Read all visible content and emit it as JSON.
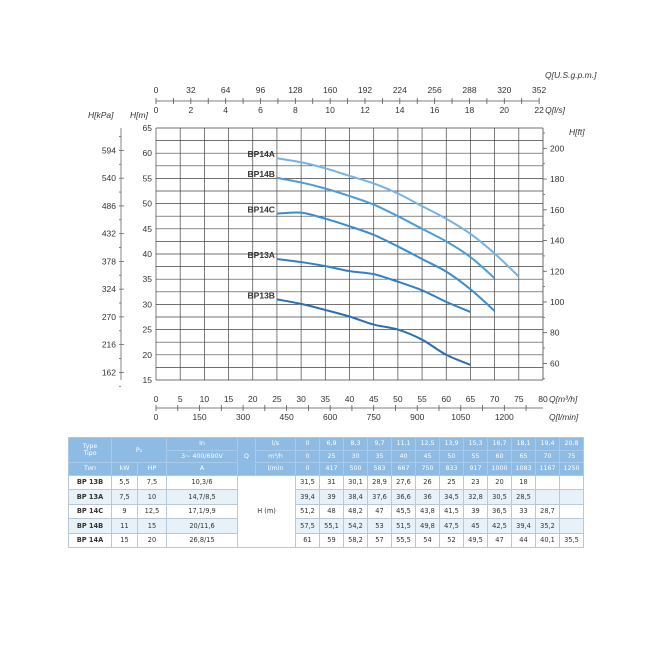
{
  "chart_data": {
    "type": "line",
    "xlabel": "Q[m³/h]",
    "ylabel": "H[m]",
    "xlim": [
      0,
      80
    ],
    "ylim": [
      15,
      65
    ],
    "x_ticks": [
      0,
      5,
      10,
      15,
      20,
      25,
      30,
      35,
      40,
      45,
      50,
      55,
      60,
      65,
      70,
      75,
      80
    ],
    "y_ticks": [
      15,
      20,
      25,
      30,
      35,
      40,
      45,
      50,
      55,
      60,
      65
    ],
    "grid": true,
    "secondary_axes": {
      "top_lps": {
        "label": "Q[l/s]",
        "ticks": [
          0,
          2,
          4,
          6,
          8,
          10,
          12,
          14,
          16,
          18,
          20,
          22
        ]
      },
      "top_usgpm": {
        "label": "Q[U.S.g.p.m.]",
        "ticks": [
          0,
          32,
          64,
          96,
          128,
          160,
          192,
          224,
          256,
          288,
          320,
          352
        ]
      },
      "bottom_lmin": {
        "label": "Q[l/min]",
        "ticks": [
          0,
          150,
          300,
          450,
          600,
          750,
          900,
          1050,
          1200
        ]
      },
      "left_kpa": {
        "label": "H[kPa]",
        "ticks": [
          162,
          216,
          270,
          324,
          378,
          432,
          486,
          540,
          594
        ]
      },
      "right_ft": {
        "label": "H[ft]",
        "ticks": [
          60,
          80,
          100,
          120,
          140,
          160,
          180,
          200
        ]
      }
    },
    "series": [
      {
        "name": "BP14A",
        "color": "#74b3e3",
        "x": [
          25,
          30,
          35,
          40,
          45,
          50,
          55,
          60,
          65,
          70,
          75
        ],
        "y": [
          59,
          58.2,
          57,
          55.5,
          54,
          52,
          49.5,
          47,
          44,
          40.1,
          35.5
        ]
      },
      {
        "name": "BP14B",
        "color": "#4d9cd8",
        "x": [
          25,
          30,
          35,
          40,
          45,
          50,
          55,
          60,
          65,
          70
        ],
        "y": [
          55.1,
          54.2,
          53,
          51.5,
          49.8,
          47.5,
          45,
          42.5,
          39.4,
          35.2
        ]
      },
      {
        "name": "BP14C",
        "color": "#3a8ccf",
        "x": [
          25,
          30,
          35,
          40,
          45,
          50,
          55,
          60,
          65,
          70
        ],
        "y": [
          48,
          48.2,
          47,
          45.5,
          43.8,
          41.5,
          39,
          36.5,
          33,
          28.7
        ]
      },
      {
        "name": "BP13A",
        "color": "#2f80c5",
        "x": [
          25,
          30,
          35,
          40,
          45,
          50,
          55,
          60,
          65
        ],
        "y": [
          39,
          38.4,
          37.6,
          36.6,
          36,
          34.5,
          32.8,
          30.5,
          28.5
        ]
      },
      {
        "name": "BP13B",
        "color": "#2a6fb4",
        "x": [
          25,
          30,
          35,
          40,
          45,
          50,
          55,
          60,
          65
        ],
        "y": [
          31,
          30.1,
          28.9,
          27.6,
          26,
          25,
          23,
          20,
          18
        ]
      }
    ]
  },
  "table": {
    "header": {
      "type": "Type",
      "tipo": "Tipo",
      "tip": "Тип",
      "p2": "P₂",
      "in": "In",
      "in_sub": "3~ 400/690V",
      "q": "Q",
      "kw": "kW",
      "hp": "HP",
      "a": "A"
    },
    "q_units": [
      {
        "unit": "l/s",
        "values": [
          "0",
          "6,9",
          "8,3",
          "9,7",
          "11,1",
          "12,5",
          "13,9",
          "15,3",
          "16,7",
          "18,1",
          "19,4",
          "20,8"
        ]
      },
      {
        "unit": "m³/h",
        "values": [
          "0",
          "25",
          "30",
          "35",
          "40",
          "45",
          "50",
          "55",
          "60",
          "65",
          "70",
          "75"
        ]
      },
      {
        "unit": "l/min",
        "values": [
          "0",
          "417",
          "500",
          "583",
          "667",
          "750",
          "833",
          "917",
          "1000",
          "1083",
          "1167",
          "1250"
        ]
      }
    ],
    "h_label": "H (m)",
    "rows": [
      {
        "type": "BP 13B",
        "kw": "5,5",
        "hp": "7,5",
        "a": "10,3/6",
        "h": [
          "31,5",
          "31",
          "30,1",
          "28,9",
          "27,6",
          "26",
          "25",
          "23",
          "20",
          "18",
          "",
          ""
        ]
      },
      {
        "type": "BP 13A",
        "kw": "7,5",
        "hp": "10",
        "a": "14,7/8,5",
        "h": [
          "39,4",
          "39",
          "38,4",
          "37,6",
          "36,6",
          "36",
          "34,5",
          "32,8",
          "30,5",
          "28,5",
          "",
          ""
        ]
      },
      {
        "type": "BP 14C",
        "kw": "9",
        "hp": "12,5",
        "a": "17,1/9,9",
        "h": [
          "51,2",
          "48",
          "48,2",
          "47",
          "45,5",
          "43,8",
          "41,5",
          "39",
          "36,5",
          "33",
          "28,7",
          ""
        ]
      },
      {
        "type": "BP 14B",
        "kw": "11",
        "hp": "15",
        "a": "20/11,6",
        "h": [
          "57,5",
          "55,1",
          "54,2",
          "53",
          "51,5",
          "49,8",
          "47,5",
          "45",
          "42,5",
          "39,4",
          "35,2",
          ""
        ]
      },
      {
        "type": "BP 14A",
        "kw": "15",
        "hp": "20",
        "a": "26,8/15",
        "h": [
          "61",
          "59",
          "58,2",
          "57",
          "55,5",
          "54",
          "52",
          "49,5",
          "47",
          "44",
          "40,1",
          "35,5"
        ]
      }
    ]
  }
}
